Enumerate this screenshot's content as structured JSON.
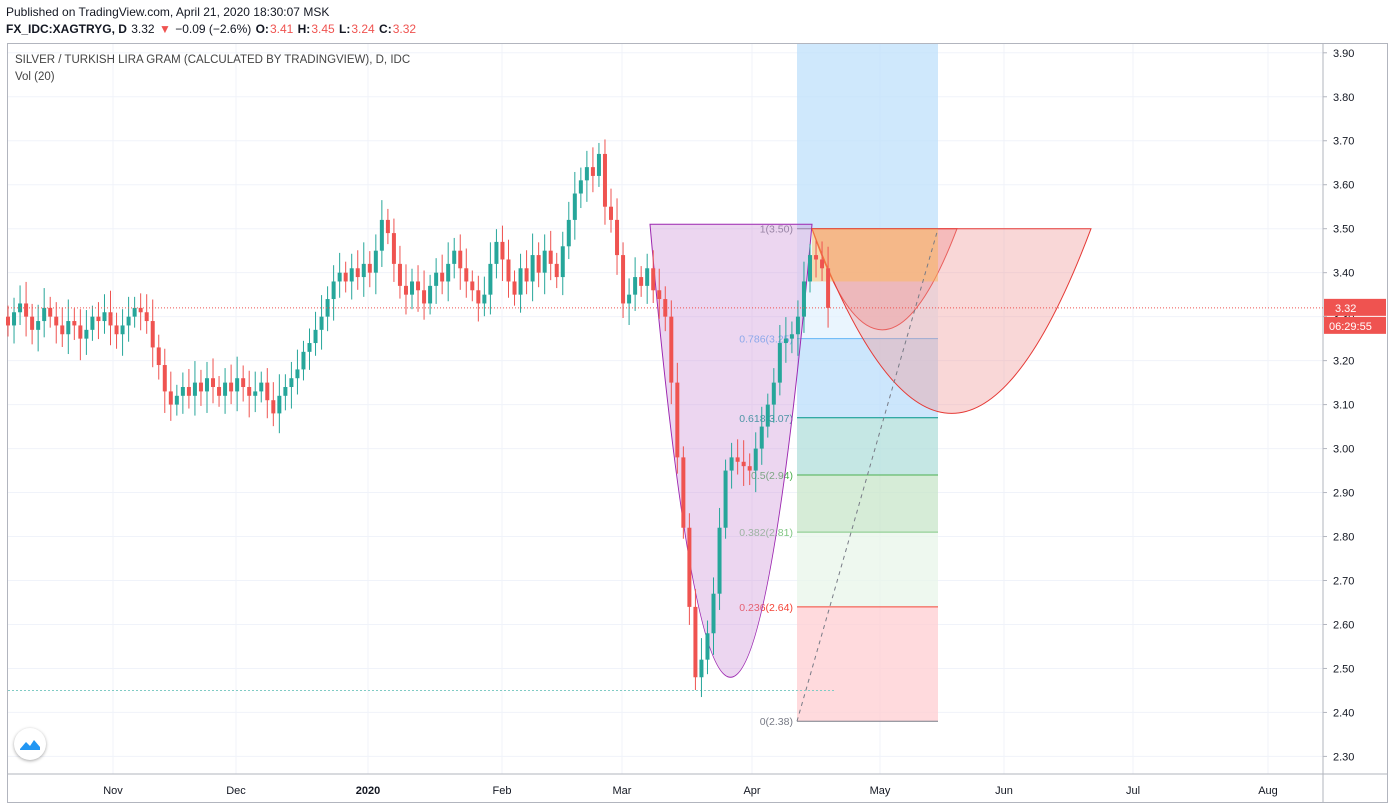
{
  "header": {
    "published": "Published on TradingView.com, April 21, 2020 18:30:07 MSK",
    "symbol": "FX_IDC:XAGTRYG, D",
    "last": "3.32",
    "change": "−0.09 (−2.6%)",
    "o_label": "O:",
    "o_value": "3.41",
    "h_label": "H:",
    "h_value": "3.45",
    "l_label": "L:",
    "l_value": "3.24",
    "c_label": "C:",
    "c_value": "3.32"
  },
  "legend": {
    "title": "SILVER / TURKISH LIRA GRAM (CALCULATED BY TRADINGVIEW), D, IDC",
    "volume": "Vol (20)"
  },
  "colors": {
    "up": "#26a69a",
    "down": "#ef5350",
    "price_line": "#ef5350",
    "grid": "#f0f3fa"
  },
  "chart_data": {
    "type": "candlestick",
    "y_axis": {
      "range": [
        2.26,
        3.92
      ],
      "ticks": [
        "3.90",
        "3.80",
        "3.70",
        "3.60",
        "3.50",
        "3.40",
        "3.30",
        "3.20",
        "3.10",
        "3.00",
        "2.90",
        "2.80",
        "2.70",
        "2.60",
        "2.50",
        "2.40",
        "2.30"
      ]
    },
    "x_axis": {
      "labels": [
        "Nov",
        "Dec",
        "2020",
        "Feb",
        "Mar",
        "Apr",
        "May",
        "Jun",
        "Jul",
        "Aug"
      ]
    },
    "current_price": "3.32",
    "countdown": "06:29:55",
    "fibonacci": [
      {
        "label": "1(3.50)",
        "level": 3.5
      },
      {
        "label": "0.786(3.25)",
        "level": 3.25
      },
      {
        "label": "0.618(3.07)",
        "level": 3.07
      },
      {
        "label": "0.5(2.94)",
        "level": 2.94
      },
      {
        "label": "0.382(2.81)",
        "level": 2.81
      },
      {
        "label": "0.236(2.64)",
        "level": 2.64
      },
      {
        "label": "0(2.38)",
        "level": 2.38
      }
    ],
    "closes": [
      3.28,
      3.31,
      3.33,
      3.3,
      3.27,
      3.29,
      3.32,
      3.3,
      3.28,
      3.26,
      3.29,
      3.28,
      3.25,
      3.27,
      3.3,
      3.29,
      3.31,
      3.28,
      3.26,
      3.28,
      3.3,
      3.32,
      3.31,
      3.29,
      3.23,
      3.19,
      3.13,
      3.1,
      3.12,
      3.14,
      3.12,
      3.15,
      3.13,
      3.16,
      3.14,
      3.12,
      3.15,
      3.13,
      3.16,
      3.14,
      3.12,
      3.13,
      3.15,
      3.11,
      3.08,
      3.12,
      3.14,
      3.16,
      3.18,
      3.22,
      3.24,
      3.27,
      3.3,
      3.34,
      3.38,
      3.4,
      3.38,
      3.41,
      3.39,
      3.42,
      3.4,
      3.45,
      3.52,
      3.49,
      3.42,
      3.37,
      3.35,
      3.38,
      3.36,
      3.33,
      3.37,
      3.4,
      3.38,
      3.42,
      3.45,
      3.41,
      3.38,
      3.36,
      3.33,
      3.35,
      3.42,
      3.47,
      3.43,
      3.38,
      3.35,
      3.41,
      3.38,
      3.44,
      3.4,
      3.45,
      3.42,
      3.39,
      3.46,
      3.52,
      3.58,
      3.61,
      3.64,
      3.62,
      3.67,
      3.55,
      3.52,
      3.44,
      3.33,
      3.35,
      3.39,
      3.37,
      3.41,
      3.36,
      3.34,
      3.3,
      3.15,
      2.98,
      2.82,
      2.64,
      2.48,
      2.52,
      2.58,
      2.67,
      2.82,
      2.95,
      2.98,
      2.97,
      2.96,
      2.95,
      3.0,
      3.05,
      3.1,
      3.15,
      3.24,
      3.25,
      3.26,
      3.3,
      3.38,
      3.44,
      3.43,
      3.41,
      3.32
    ],
    "volume_profile_level": 2.45
  }
}
